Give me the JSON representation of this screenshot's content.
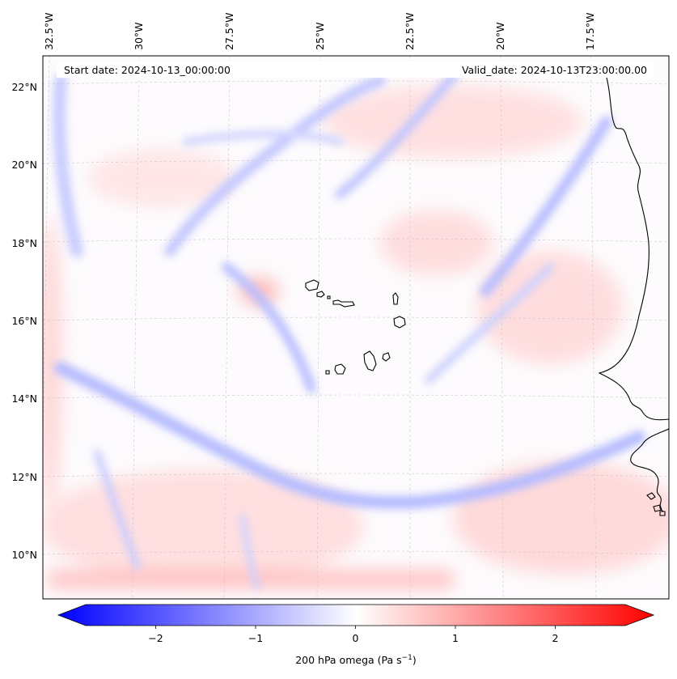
{
  "map": {
    "header": {
      "start_date": "Start date: 2024-10-13_00:00:00",
      "valid_date": "Valid_date: 2024-10-13T23:00:00.00"
    },
    "longitude_labels": [
      "32.5°W",
      "30°W",
      "27.5°W",
      "25°W",
      "22.5°W",
      "20°W",
      "17.5°W"
    ],
    "latitude_labels": [
      "22°N",
      "20°N",
      "18°N",
      "16°N",
      "14°N",
      "12°N",
      "10°N"
    ],
    "colors": {
      "negative": "#0000ff",
      "zero": "#ffffff",
      "positive": "#ff0000",
      "coastline": "#000000"
    }
  },
  "colorbar": {
    "ticks": [
      "−2",
      "−1",
      "0",
      "1",
      "2"
    ],
    "tick_values": [
      -2,
      -1,
      0,
      1,
      2
    ],
    "range": [
      -2.7,
      2.7
    ],
    "label_main": "200 hPa omega (Pa s",
    "label_sup": "−1",
    "label_close": ")"
  }
}
